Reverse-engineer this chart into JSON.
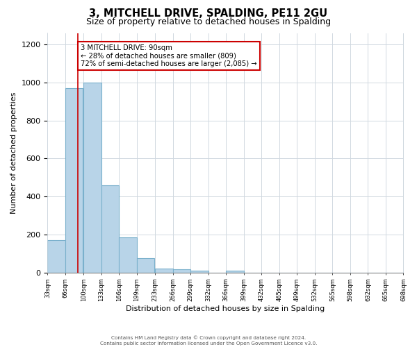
{
  "title": "3, MITCHELL DRIVE, SPALDING, PE11 2GU",
  "subtitle": "Size of property relative to detached houses in Spalding",
  "xlabel": "Distribution of detached houses by size in Spalding",
  "ylabel": "Number of detached properties",
  "bar_left_edges": [
    33,
    66,
    100,
    133,
    166,
    199,
    233,
    266,
    299,
    332,
    365,
    398,
    431,
    464,
    497,
    530,
    563,
    596,
    629,
    662
  ],
  "bar_heights": [
    170,
    970,
    1000,
    460,
    185,
    75,
    22,
    18,
    10,
    0,
    10,
    0,
    0,
    0,
    0,
    0,
    0,
    0,
    0,
    0
  ],
  "bin_width": 33,
  "bar_color": "#b8d4e8",
  "bar_edge_color": "#7ab0cc",
  "tick_labels": [
    "33sqm",
    "66sqm",
    "100sqm",
    "133sqm",
    "166sqm",
    "199sqm",
    "233sqm",
    "266sqm",
    "299sqm",
    "332sqm",
    "366sqm",
    "399sqm",
    "432sqm",
    "465sqm",
    "499sqm",
    "532sqm",
    "565sqm",
    "598sqm",
    "632sqm",
    "665sqm",
    "698sqm"
  ],
  "ylim": [
    0,
    1260
  ],
  "yticks": [
    0,
    200,
    400,
    600,
    800,
    1000,
    1200
  ],
  "red_line_x": 90,
  "annotation_line1": "3 MITCHELL DRIVE: 90sqm",
  "annotation_line2": "← 28% of detached houses are smaller (809)",
  "annotation_line3": "72% of semi-detached houses are larger (2,085) →",
  "footer_line1": "Contains HM Land Registry data © Crown copyright and database right 2024.",
  "footer_line2": "Contains public sector information licensed under the Open Government Licence v3.0.",
  "background_color": "#ffffff",
  "grid_color": "#d0d8e0"
}
